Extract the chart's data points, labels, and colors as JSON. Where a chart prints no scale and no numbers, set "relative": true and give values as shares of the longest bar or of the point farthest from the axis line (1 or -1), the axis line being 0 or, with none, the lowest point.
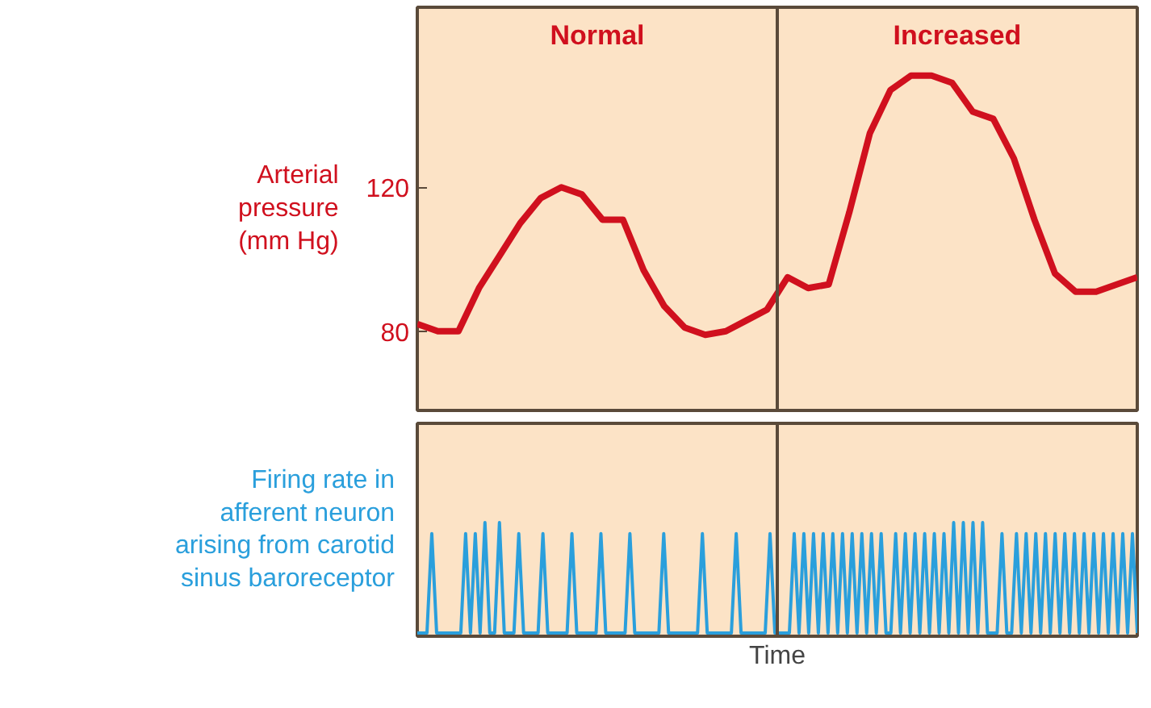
{
  "chart_data": [
    {
      "type": "line",
      "ylabel": "Arterial pressure (mm Hg)",
      "annotations": [
        "Normal",
        "Increased"
      ],
      "categories": [
        null,
        null,
        null,
        null,
        null,
        null,
        null,
        null,
        null,
        null,
        null,
        null,
        null,
        null,
        null,
        null,
        null,
        null,
        null,
        null,
        null,
        null,
        null,
        null,
        null,
        null,
        null,
        null,
        null,
        null,
        null,
        null,
        null,
        null,
        null,
        null
      ],
      "ylim": [
        58,
        170
      ],
      "yticks": [
        80,
        120
      ],
      "series": [
        {
          "color": "#d0101e",
          "values": [
            82,
            80,
            80,
            92,
            101,
            110,
            117,
            120,
            118,
            111,
            111,
            97,
            87,
            81,
            79,
            80,
            83,
            86,
            95,
            92,
            93,
            113,
            135,
            147,
            151,
            151,
            149,
            141,
            139,
            128,
            111,
            96,
            91,
            91,
            93,
            95
          ]
        }
      ]
    },
    {
      "type": "line",
      "relative": true,
      "ylabel": "Firing rate in afferent neuron arising from carotid sinus baroreceptor",
      "xlabel": "Time",
      "categories": [
        null,
        null,
        null,
        null,
        null,
        null,
        null,
        null,
        null,
        null,
        null,
        null,
        null,
        null,
        null,
        null,
        null,
        null,
        null,
        null,
        null,
        null,
        null,
        null,
        null,
        null,
        null,
        null,
        null,
        null,
        null,
        null,
        null,
        null,
        null,
        null,
        null,
        null,
        null,
        null,
        null,
        null,
        null,
        null,
        null,
        null,
        null,
        null,
        null,
        null,
        null,
        null,
        null,
        null,
        null,
        null,
        null,
        null,
        null,
        null,
        null,
        null,
        null,
        null,
        null,
        null,
        null,
        null,
        null,
        null,
        null,
        null,
        null,
        null,
        null,
        null,
        null,
        null,
        null,
        null,
        null,
        null,
        null,
        null,
        null,
        null,
        null,
        null,
        null,
        null,
        null,
        null,
        null,
        null,
        null,
        null,
        null,
        null,
        null,
        null,
        null,
        null,
        null,
        null,
        null,
        null,
        null,
        null,
        null,
        null,
        null,
        null,
        null,
        null,
        null,
        null,
        null,
        null,
        null,
        null,
        null,
        null,
        null,
        null,
        null,
        null,
        null,
        null,
        null,
        null,
        null,
        null,
        null,
        null,
        null,
        null,
        null,
        null,
        null,
        null,
        null,
        null,
        null,
        null,
        null,
        null,
        null,
        null,
        null,
        null
      ],
      "series": [
        {
          "color": "#2a9fdc",
          "values": [
            0,
            0,
            0,
            0.9,
            0,
            0,
            0,
            0,
            0,
            0,
            0.9,
            0,
            0.9,
            0,
            1,
            0,
            0,
            1,
            0,
            0,
            0,
            0.9,
            0,
            0,
            0,
            0,
            0.9,
            0,
            0,
            0,
            0,
            0,
            0.9,
            0,
            0,
            0,
            0,
            0,
            0.9,
            0,
            0,
            0,
            0,
            0,
            0.9,
            0,
            0,
            0,
            0,
            0,
            0,
            0.9,
            0,
            0,
            0,
            0,
            0,
            0,
            0,
            0.9,
            0,
            0,
            0,
            0,
            0,
            0,
            0.9,
            0,
            0,
            0,
            0,
            0,
            0,
            0.9,
            0,
            0,
            0,
            0,
            0.9,
            0,
            0.9,
            0,
            0.9,
            0,
            0.9,
            0,
            0.9,
            0,
            0.9,
            0,
            0.9,
            0,
            0.9,
            0,
            0.9,
            0,
            0.9,
            0,
            0,
            0.9,
            0,
            0.9,
            0,
            0.9,
            0,
            0.9,
            0,
            0.9,
            0,
            0.9,
            0,
            1,
            0,
            1,
            0,
            1,
            0,
            1,
            0,
            0,
            0,
            0.9,
            0,
            0,
            0.9,
            0,
            0.9,
            0,
            0.9,
            0,
            0.9,
            0,
            0.9,
            0,
            0.9,
            0,
            0.9,
            0,
            0.9,
            0,
            0.9,
            0,
            0.9,
            0,
            0.9,
            0,
            0.9,
            0,
            0.9,
            0
          ]
        }
      ]
    }
  ]
}
